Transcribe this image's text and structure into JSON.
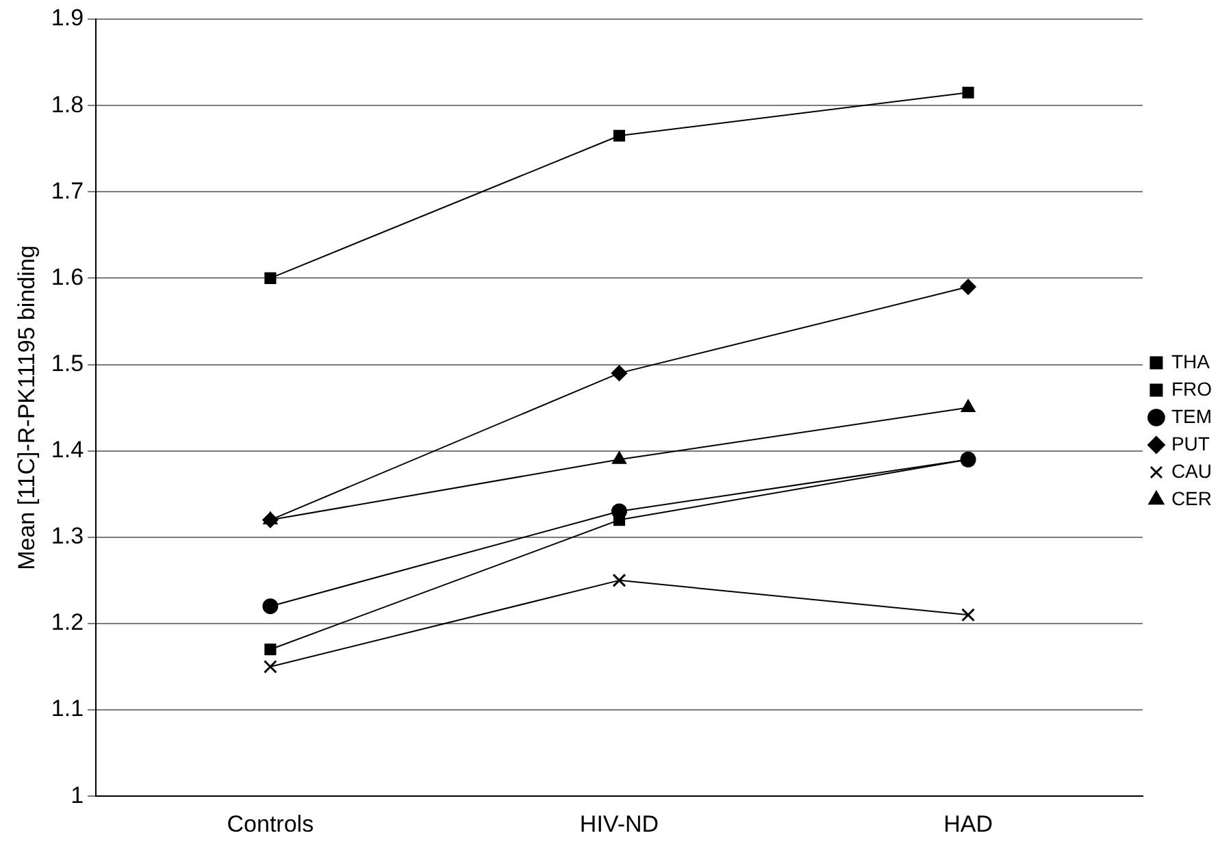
{
  "chart_data": {
    "type": "line",
    "ylabel": "Mean [11C]-R-PK11195 binding",
    "categories": [
      "Controls",
      "HIV-ND",
      "HAD"
    ],
    "ylim": [
      1,
      1.9
    ],
    "yticks": [
      1,
      1.1,
      1.2,
      1.3,
      1.4,
      1.5,
      1.6,
      1.7,
      1.8,
      1.9
    ],
    "grid": "y",
    "legend": "right",
    "line_style": "solid",
    "series": [
      {
        "name": "THA",
        "color": "#000000",
        "marker": "square",
        "values": [
          1.6,
          1.765,
          1.815
        ]
      },
      {
        "name": "FRO",
        "color": "#000000",
        "marker": "square",
        "values": [
          1.17,
          1.32,
          1.39
        ]
      },
      {
        "name": "TEM",
        "color": "#000000",
        "marker": "circle",
        "values": [
          1.22,
          1.33,
          1.39
        ]
      },
      {
        "name": "PUT",
        "color": "#000000",
        "marker": "diamond",
        "values": [
          1.32,
          1.49,
          1.59
        ]
      },
      {
        "name": "CAU",
        "color": "#000000",
        "marker": "cross",
        "values": [
          1.15,
          1.25,
          1.21
        ]
      },
      {
        "name": "CER",
        "color": "#000000",
        "marker": "triangle",
        "values": [
          1.32,
          1.39,
          1.45
        ]
      }
    ]
  }
}
